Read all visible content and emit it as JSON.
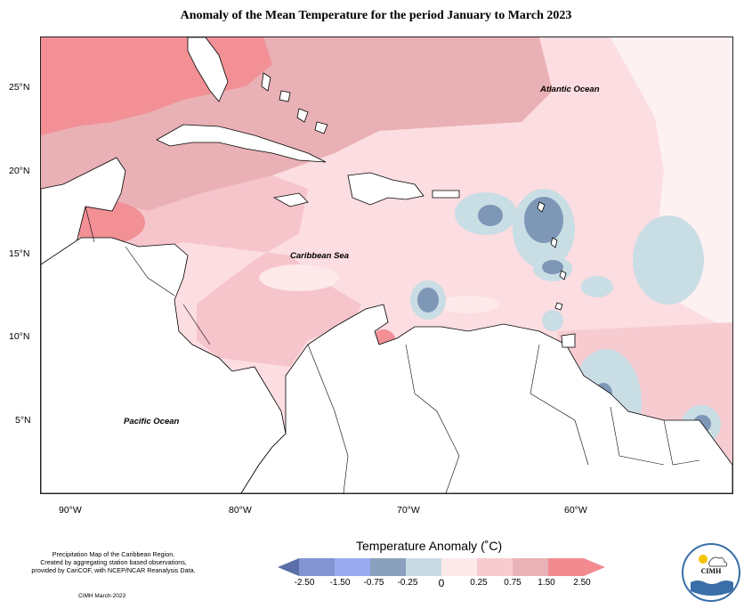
{
  "title": "Anomaly of the Mean Temperature for the period January to March 2023",
  "ocean_labels": {
    "atlantic": "Atlantic Ocean",
    "caribbean": "Caribbean Sea",
    "pacific": "Pacific Ocean"
  },
  "axes": {
    "lat_ticks": [
      "25°N",
      "20°N",
      "15°N",
      "10°N",
      "5°N"
    ],
    "lon_ticks": [
      "90°W",
      "80°W",
      "70°W",
      "60°W"
    ]
  },
  "legend": {
    "title": "Temperature Anomaly (˚C)",
    "ticks": [
      "-2.50",
      "-1.50",
      "-0.75",
      "-0.25",
      "0",
      "0.25",
      "0.75",
      "1.50",
      "2.50"
    ],
    "colors": [
      "#5a6ea8",
      "#8294d2",
      "#9aaaf0",
      "#8aa0bc",
      "#c9dbe3",
      "#fce9ea",
      "#f7ccd1",
      "#e8b2b6",
      "#f28a8f"
    ]
  },
  "footnote": {
    "line1": "Precipitation Map of the Caribbean Region.",
    "line2": "Created by aggregating station based observations,",
    "line3": "provided by CariCOF, with NCEP/NCAR Reanalysis Data."
  },
  "credit": "CIMH March-2023",
  "logo": {
    "text": "CIMH"
  },
  "colors": {
    "land_bg": "#ffffff",
    "light_pink": "#fcdde1",
    "mid_pink": "#f6c4cb",
    "dusty_pink": "#e9b1b5",
    "hot_pink": "#f29096",
    "light_blue": "#c9dde5",
    "slate_blue": "#7e97b6"
  }
}
